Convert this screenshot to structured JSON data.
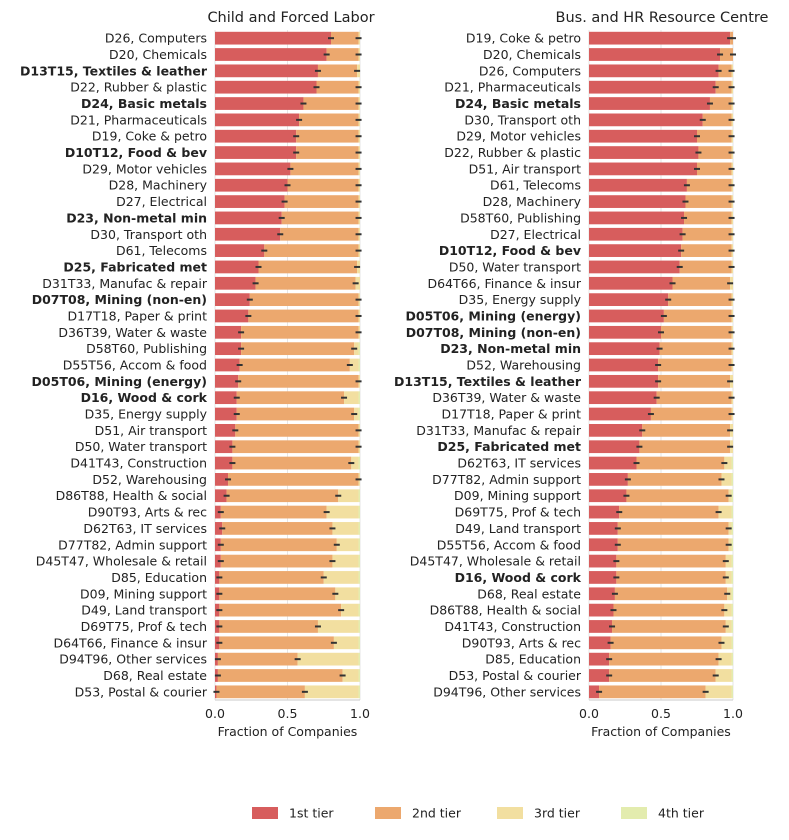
{
  "colors": {
    "tier1": "#d75d5d",
    "tier2": "#eca86e",
    "tier3": "#f2dfa0",
    "tier4": "#e3ecae",
    "error": "#333333",
    "grid": "#e6e6e6",
    "axis": "#c8c8c8",
    "text": "#222222"
  },
  "legend": {
    "items": [
      {
        "label": "1st tier",
        "color_key": "tier1"
      },
      {
        "label": "2nd tier",
        "color_key": "tier2"
      },
      {
        "label": "3rd tier",
        "color_key": "tier3"
      },
      {
        "label": "4th tier",
        "color_key": "tier4"
      }
    ]
  },
  "chart_data": [
    {
      "type": "bar",
      "orientation": "horizontal",
      "stacked": true,
      "title": "Child and Forced Labor",
      "xlabel": "Fraction of Companies",
      "xlim": [
        0,
        1
      ],
      "xticks": [
        "0.0",
        "0.5",
        "1.0"
      ],
      "grid": true,
      "series_names": [
        "1st tier",
        "2nd tier",
        "3rd tier",
        "4th tier"
      ],
      "rows": [
        {
          "label": "D26, Computers",
          "bold": false,
          "values": [
            0.8,
            0.19,
            0.01,
            0.0
          ]
        },
        {
          "label": "D20, Chemicals",
          "bold": false,
          "values": [
            0.77,
            0.22,
            0.01,
            0.0
          ]
        },
        {
          "label": "D13T15, Textiles & leather",
          "bold": true,
          "values": [
            0.71,
            0.27,
            0.02,
            0.0
          ]
        },
        {
          "label": "D22, Rubber & plastic",
          "bold": false,
          "values": [
            0.7,
            0.29,
            0.01,
            0.0
          ]
        },
        {
          "label": "D24, Basic metals",
          "bold": true,
          "values": [
            0.61,
            0.38,
            0.01,
            0.0
          ]
        },
        {
          "label": "D21, Pharmaceuticals",
          "bold": false,
          "values": [
            0.58,
            0.41,
            0.01,
            0.0
          ]
        },
        {
          "label": "D19, Coke & petro",
          "bold": false,
          "values": [
            0.56,
            0.43,
            0.01,
            0.0
          ]
        },
        {
          "label": "D10T12, Food & bev",
          "bold": true,
          "values": [
            0.56,
            0.43,
            0.01,
            0.0
          ]
        },
        {
          "label": "D29, Motor vehicles",
          "bold": false,
          "values": [
            0.52,
            0.47,
            0.01,
            0.0
          ]
        },
        {
          "label": "D28, Machinery",
          "bold": false,
          "values": [
            0.5,
            0.49,
            0.01,
            0.0
          ]
        },
        {
          "label": "D27, Electrical",
          "bold": false,
          "values": [
            0.48,
            0.51,
            0.01,
            0.0
          ]
        },
        {
          "label": "D23, Non-metal min",
          "bold": true,
          "values": [
            0.46,
            0.53,
            0.01,
            0.0
          ]
        },
        {
          "label": "D30, Transport oth",
          "bold": false,
          "values": [
            0.45,
            0.54,
            0.01,
            0.0
          ]
        },
        {
          "label": "D61, Telecoms",
          "bold": false,
          "values": [
            0.34,
            0.65,
            0.01,
            0.0
          ]
        },
        {
          "label": "D25, Fabricated met",
          "bold": true,
          "values": [
            0.3,
            0.68,
            0.02,
            0.0
          ]
        },
        {
          "label": "D31T33, Manufac & repair",
          "bold": false,
          "values": [
            0.28,
            0.69,
            0.03,
            0.0
          ]
        },
        {
          "label": "D07T08, Mining (non-en)",
          "bold": true,
          "values": [
            0.24,
            0.75,
            0.01,
            0.0
          ]
        },
        {
          "label": "D17T18, Paper & print",
          "bold": false,
          "values": [
            0.23,
            0.76,
            0.01,
            0.0
          ]
        },
        {
          "label": "D36T39, Water & waste",
          "bold": false,
          "values": [
            0.18,
            0.81,
            0.01,
            0.0
          ]
        },
        {
          "label": "D58T60, Publishing",
          "bold": false,
          "values": [
            0.18,
            0.78,
            0.03,
            0.01
          ]
        },
        {
          "label": "D55T56, Accom & food",
          "bold": false,
          "values": [
            0.17,
            0.76,
            0.06,
            0.01
          ]
        },
        {
          "label": "D05T06, Mining (energy)",
          "bold": true,
          "values": [
            0.16,
            0.83,
            0.01,
            0.0
          ]
        },
        {
          "label": "D16, Wood & cork",
          "bold": true,
          "values": [
            0.15,
            0.74,
            0.1,
            0.01
          ]
        },
        {
          "label": "D35, Energy supply",
          "bold": false,
          "values": [
            0.15,
            0.81,
            0.03,
            0.01
          ]
        },
        {
          "label": "D51, Air transport",
          "bold": false,
          "values": [
            0.14,
            0.85,
            0.01,
            0.0
          ]
        },
        {
          "label": "D50, Water transport",
          "bold": false,
          "values": [
            0.12,
            0.87,
            0.01,
            0.0
          ]
        },
        {
          "label": "D41T43, Construction",
          "bold": false,
          "values": [
            0.12,
            0.82,
            0.05,
            0.01
          ]
        },
        {
          "label": "D52, Warehousing",
          "bold": false,
          "values": [
            0.09,
            0.9,
            0.01,
            0.0
          ]
        },
        {
          "label": "D86T88, Health & social",
          "bold": false,
          "values": [
            0.08,
            0.77,
            0.14,
            0.01
          ]
        },
        {
          "label": "D90T93, Arts & rec",
          "bold": false,
          "values": [
            0.04,
            0.73,
            0.22,
            0.01
          ]
        },
        {
          "label": "D62T63, IT services",
          "bold": false,
          "values": [
            0.05,
            0.76,
            0.18,
            0.01
          ]
        },
        {
          "label": "D77T82, Admin support",
          "bold": false,
          "values": [
            0.04,
            0.8,
            0.15,
            0.01
          ]
        },
        {
          "label": "D45T47, Wholesale & retail",
          "bold": false,
          "values": [
            0.04,
            0.77,
            0.18,
            0.01
          ]
        },
        {
          "label": "D85, Education",
          "bold": false,
          "values": [
            0.03,
            0.72,
            0.24,
            0.01
          ]
        },
        {
          "label": "D09, Mining support",
          "bold": false,
          "values": [
            0.03,
            0.8,
            0.16,
            0.01
          ]
        },
        {
          "label": "D49, Land transport",
          "bold": false,
          "values": [
            0.03,
            0.84,
            0.12,
            0.01
          ]
        },
        {
          "label": "D69T75, Prof & tech",
          "bold": false,
          "values": [
            0.03,
            0.68,
            0.28,
            0.01
          ]
        },
        {
          "label": "D64T66, Finance & insur",
          "bold": false,
          "values": [
            0.03,
            0.79,
            0.17,
            0.01
          ]
        },
        {
          "label": "D94T96, Other services",
          "bold": false,
          "values": [
            0.02,
            0.55,
            0.42,
            0.01
          ]
        },
        {
          "label": "D68, Real estate",
          "bold": false,
          "values": [
            0.02,
            0.86,
            0.11,
            0.01
          ]
        },
        {
          "label": "D53, Postal & courier",
          "bold": false,
          "values": [
            0.01,
            0.61,
            0.37,
            0.01
          ]
        }
      ]
    },
    {
      "type": "bar",
      "orientation": "horizontal",
      "stacked": true,
      "title": "Bus. and HR Resource Centre",
      "xlabel": "Fraction of Companies",
      "xlim": [
        0,
        1
      ],
      "xticks": [
        "0.0",
        "0.5",
        "1.0"
      ],
      "grid": true,
      "series_names": [
        "1st tier",
        "2nd tier",
        "3rd tier",
        "4th tier"
      ],
      "rows": [
        {
          "label": "D19, Coke & petro",
          "bold": false,
          "values": [
            0.98,
            0.02,
            0.0,
            0.0
          ]
        },
        {
          "label": "D20, Chemicals",
          "bold": false,
          "values": [
            0.91,
            0.09,
            0.0,
            0.0
          ]
        },
        {
          "label": "D26, Computers",
          "bold": false,
          "values": [
            0.9,
            0.09,
            0.01,
            0.0
          ]
        },
        {
          "label": "D21, Pharmaceuticals",
          "bold": false,
          "values": [
            0.88,
            0.11,
            0.01,
            0.0
          ]
        },
        {
          "label": "D24, Basic metals",
          "bold": true,
          "values": [
            0.84,
            0.15,
            0.01,
            0.0
          ]
        },
        {
          "label": "D30, Transport oth",
          "bold": false,
          "values": [
            0.79,
            0.2,
            0.01,
            0.0
          ]
        },
        {
          "label": "D29, Motor vehicles",
          "bold": false,
          "values": [
            0.75,
            0.24,
            0.01,
            0.0
          ]
        },
        {
          "label": "D22, Rubber & plastic",
          "bold": false,
          "values": [
            0.76,
            0.23,
            0.01,
            0.0
          ]
        },
        {
          "label": "D51, Air transport",
          "bold": false,
          "values": [
            0.75,
            0.24,
            0.01,
            0.0
          ]
        },
        {
          "label": "D61, Telecoms",
          "bold": false,
          "values": [
            0.68,
            0.31,
            0.01,
            0.0
          ]
        },
        {
          "label": "D28, Machinery",
          "bold": false,
          "values": [
            0.67,
            0.32,
            0.01,
            0.0
          ]
        },
        {
          "label": "D58T60, Publishing",
          "bold": false,
          "values": [
            0.66,
            0.33,
            0.01,
            0.0
          ]
        },
        {
          "label": "D27, Electrical",
          "bold": false,
          "values": [
            0.65,
            0.34,
            0.01,
            0.0
          ]
        },
        {
          "label": "D10T12, Food & bev",
          "bold": true,
          "values": [
            0.64,
            0.35,
            0.01,
            0.0
          ]
        },
        {
          "label": "D50, Water transport",
          "bold": false,
          "values": [
            0.63,
            0.36,
            0.01,
            0.0
          ]
        },
        {
          "label": "D64T66, Finance & insur",
          "bold": false,
          "values": [
            0.58,
            0.4,
            0.02,
            0.0
          ]
        },
        {
          "label": "D35, Energy supply",
          "bold": false,
          "values": [
            0.55,
            0.44,
            0.01,
            0.0
          ]
        },
        {
          "label": "D05T06, Mining (energy)",
          "bold": true,
          "values": [
            0.52,
            0.47,
            0.01,
            0.0
          ]
        },
        {
          "label": "D07T08, Mining (non-en)",
          "bold": true,
          "values": [
            0.5,
            0.49,
            0.01,
            0.0
          ]
        },
        {
          "label": "D23, Non-metal min",
          "bold": true,
          "values": [
            0.49,
            0.5,
            0.01,
            0.0
          ]
        },
        {
          "label": "D52, Warehousing",
          "bold": false,
          "values": [
            0.48,
            0.51,
            0.01,
            0.0
          ]
        },
        {
          "label": "D13T15, Textiles & leather",
          "bold": true,
          "values": [
            0.48,
            0.5,
            0.02,
            0.0
          ]
        },
        {
          "label": "D36T39, Water & waste",
          "bold": false,
          "values": [
            0.47,
            0.52,
            0.01,
            0.0
          ]
        },
        {
          "label": "D17T18, Paper & print",
          "bold": false,
          "values": [
            0.43,
            0.56,
            0.01,
            0.0
          ]
        },
        {
          "label": "D31T33, Manufac & repair",
          "bold": false,
          "values": [
            0.37,
            0.61,
            0.02,
            0.0
          ]
        },
        {
          "label": "D25, Fabricated met",
          "bold": true,
          "values": [
            0.35,
            0.63,
            0.02,
            0.0
          ]
        },
        {
          "label": "D62T63, IT services",
          "bold": false,
          "values": [
            0.33,
            0.61,
            0.05,
            0.01
          ]
        },
        {
          "label": "D77T82, Admin support",
          "bold": false,
          "values": [
            0.27,
            0.65,
            0.07,
            0.01
          ]
        },
        {
          "label": "D09, Mining support",
          "bold": false,
          "values": [
            0.26,
            0.71,
            0.02,
            0.01
          ]
        },
        {
          "label": "D69T75, Prof & tech",
          "bold": false,
          "values": [
            0.21,
            0.69,
            0.09,
            0.01
          ]
        },
        {
          "label": "D49, Land transport",
          "bold": false,
          "values": [
            0.2,
            0.77,
            0.02,
            0.01
          ]
        },
        {
          "label": "D55T56, Accom & food",
          "bold": false,
          "values": [
            0.2,
            0.77,
            0.02,
            0.01
          ]
        },
        {
          "label": "D45T47, Wholesale & retail",
          "bold": false,
          "values": [
            0.19,
            0.76,
            0.04,
            0.01
          ]
        },
        {
          "label": "D16, Wood & cork",
          "bold": true,
          "values": [
            0.19,
            0.76,
            0.04,
            0.01
          ]
        },
        {
          "label": "D68, Real estate",
          "bold": false,
          "values": [
            0.18,
            0.78,
            0.03,
            0.01
          ]
        },
        {
          "label": "D86T88, Health & social",
          "bold": false,
          "values": [
            0.17,
            0.77,
            0.05,
            0.01
          ]
        },
        {
          "label": "D41T43, Construction",
          "bold": false,
          "values": [
            0.16,
            0.79,
            0.04,
            0.01
          ]
        },
        {
          "label": "D90T93, Arts & rec",
          "bold": false,
          "values": [
            0.15,
            0.77,
            0.07,
            0.01
          ]
        },
        {
          "label": "D85, Education",
          "bold": false,
          "values": [
            0.14,
            0.76,
            0.09,
            0.01
          ]
        },
        {
          "label": "D53, Postal & courier",
          "bold": false,
          "values": [
            0.14,
            0.74,
            0.11,
            0.01
          ]
        },
        {
          "label": "D94T96, Other services",
          "bold": false,
          "values": [
            0.07,
            0.74,
            0.18,
            0.01
          ]
        }
      ]
    }
  ]
}
